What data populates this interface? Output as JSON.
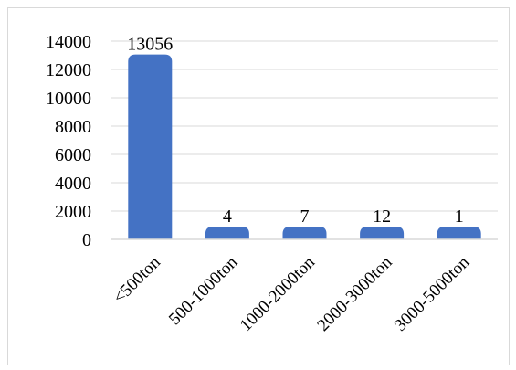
{
  "chart_data": {
    "type": "bar",
    "categories": [
      "<500ton",
      "500-1000ton",
      "1000-2000ton",
      "2000-3000ton",
      "3000-5000ton"
    ],
    "values": [
      13056,
      4,
      7,
      12,
      1
    ],
    "data_labels": [
      "13056",
      "4",
      "7",
      "12",
      "1"
    ],
    "ylim": [
      0,
      14000
    ],
    "yticks": [
      0,
      2000,
      4000,
      6000,
      8000,
      10000,
      12000,
      14000
    ],
    "title": "",
    "xlabel": "",
    "ylabel": "",
    "grid": "horizontal",
    "legend": "none",
    "bar_color": "#4472C4"
  }
}
